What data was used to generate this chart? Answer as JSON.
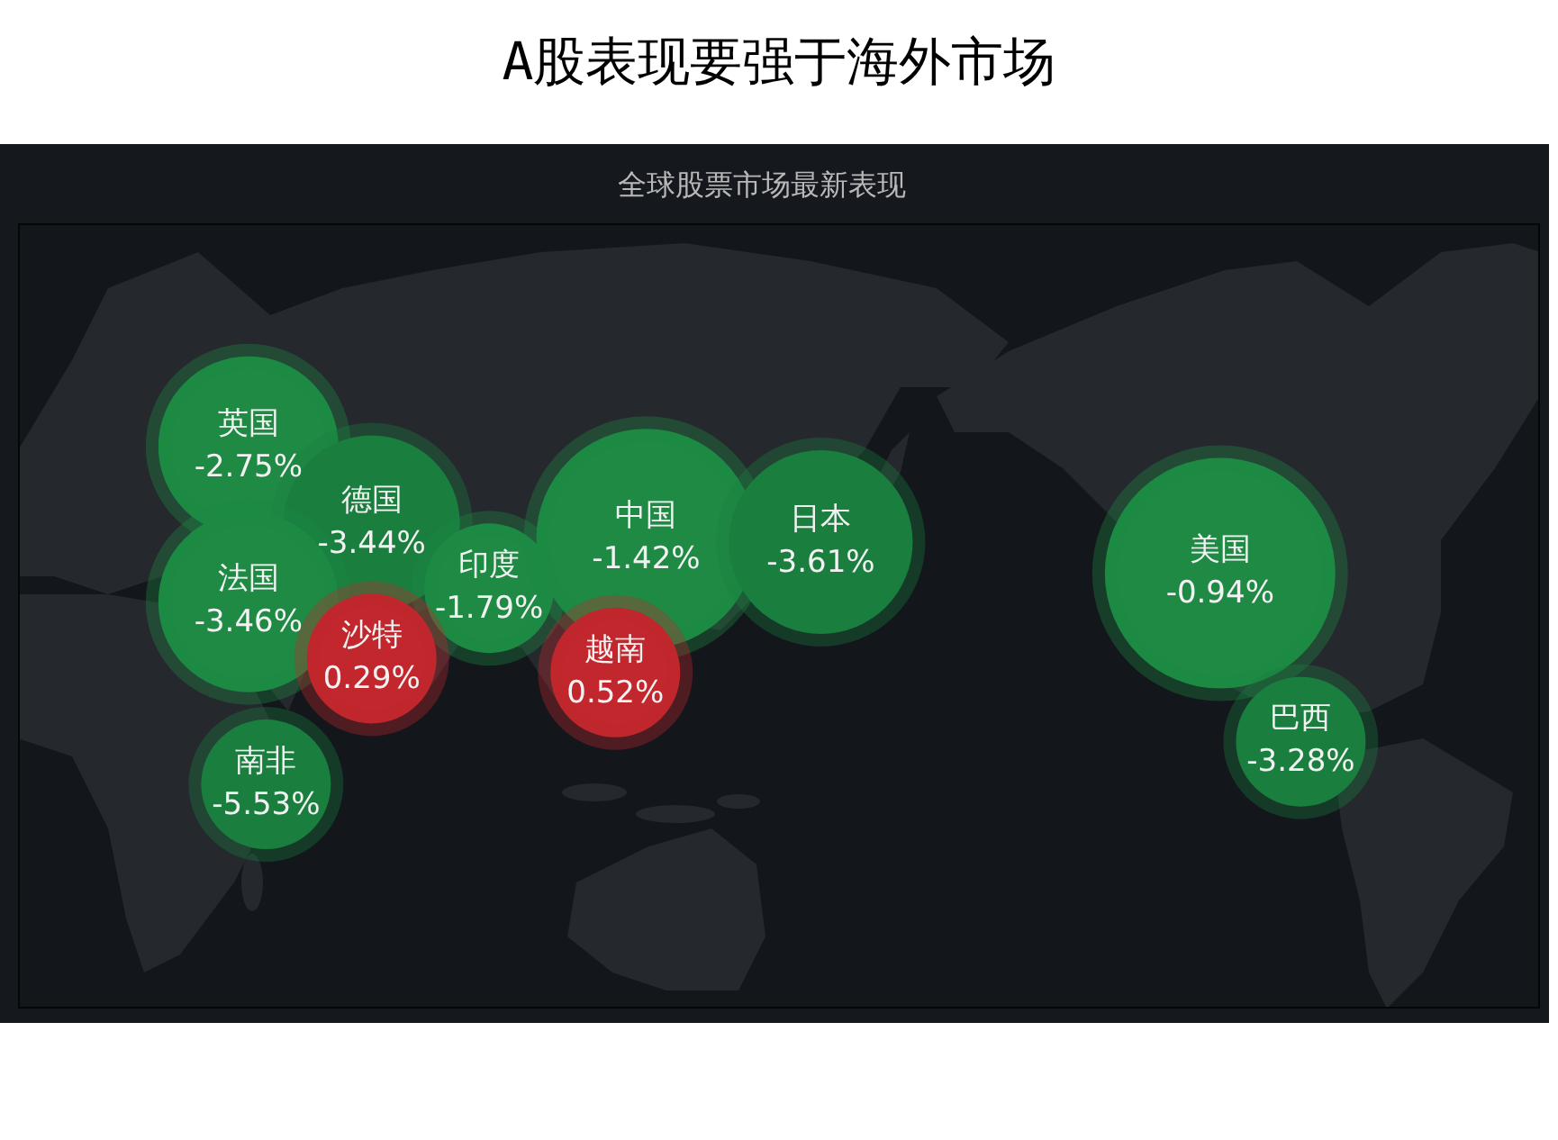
{
  "chart_data": {
    "type": "other",
    "title": "A股表现要强于海外市场",
    "subtitle": "全球股票市场最新表现",
    "categories": [
      "英国",
      "德国",
      "法国",
      "印度",
      "中国",
      "日本",
      "美国",
      "沙特",
      "越南",
      "南非",
      "巴西"
    ],
    "values": [
      -2.75,
      -3.44,
      -3.46,
      -1.79,
      -1.42,
      -3.61,
      -0.94,
      0.29,
      0.52,
      -5.53,
      -3.28
    ],
    "value_labels": [
      "-2.75%",
      "-3.44%",
      "-3.46%",
      "-1.79%",
      "-1.42%",
      "-3.61%",
      "-0.94%",
      "0.29%",
      "0.52%",
      "-5.53%",
      "-3.28%"
    ],
    "colors": [
      "#1e8a44",
      "#1a7f3e",
      "#1e8a44",
      "#1e8a44",
      "#1e8a44",
      "#1a7f3e",
      "#1e8a44",
      "#c1272d",
      "#c1272d",
      "#1a7f3e",
      "#1a7f3e"
    ]
  }
}
